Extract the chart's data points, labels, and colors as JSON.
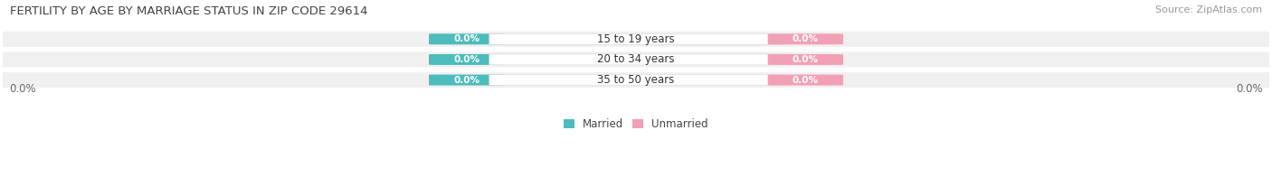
{
  "title": "FERTILITY BY AGE BY MARRIAGE STATUS IN ZIP CODE 29614",
  "source": "Source: ZipAtlas.com",
  "categories": [
    "15 to 19 years",
    "20 to 34 years",
    "35 to 50 years"
  ],
  "married_values": [
    0.0,
    0.0,
    0.0
  ],
  "unmarried_values": [
    0.0,
    0.0,
    0.0
  ],
  "married_color": "#4CBCBC",
  "unmarried_color": "#F2A0B5",
  "bar_bg_color": "#F0F0F0",
  "bar_bg_color_dark": "#E8E8E8",
  "title_fontsize": 9.5,
  "source_fontsize": 8,
  "label_fontsize": 8.5,
  "category_fontsize": 8.5,
  "value_fontsize": 7.5,
  "background_color": "#FFFFFF",
  "legend_married": "Married",
  "legend_unmarried": "Unmarried",
  "left_label": "0.0%",
  "right_label": "0.0%"
}
